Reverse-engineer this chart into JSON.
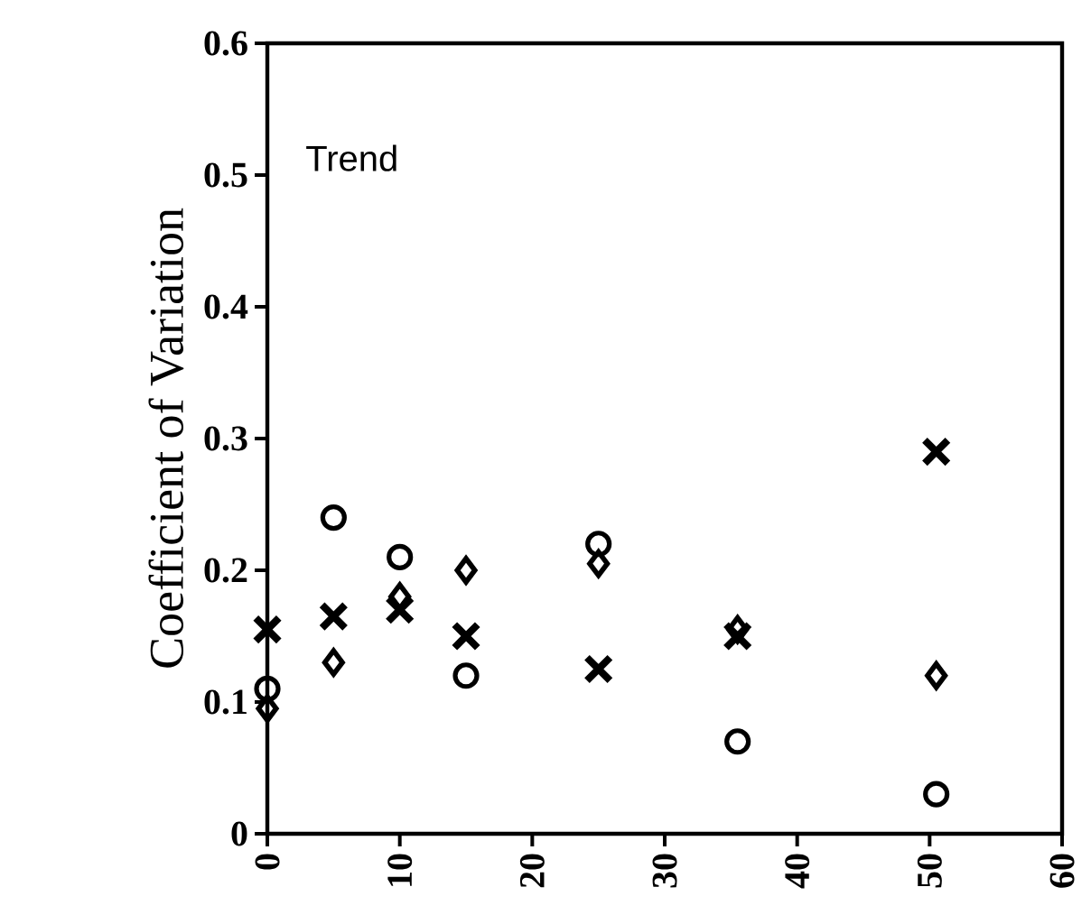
{
  "chart_data": {
    "type": "scatter",
    "ylabel": "Coefficient of Variation",
    "annotations": [
      "Trend"
    ],
    "xlim": [
      0,
      60
    ],
    "xticks": [
      0,
      10,
      20,
      30,
      40,
      50,
      60
    ],
    "ylim": [
      0,
      0.6
    ],
    "yticks": [
      0,
      0.1,
      0.2,
      0.3,
      0.4,
      0.5,
      0.6
    ],
    "series": [
      {
        "color": "#000000",
        "marker": "circle",
        "x": [
          0,
          5,
          10,
          15,
          25,
          35.5,
          50.5
        ],
        "values": [
          0.11,
          0.24,
          0.21,
          0.12,
          0.22,
          0.07,
          0.03
        ]
      },
      {
        "color": "#000000",
        "marker": "diamond",
        "x": [
          0,
          5,
          10,
          15,
          25,
          35.5,
          50.5
        ],
        "values": [
          0.095,
          0.13,
          0.18,
          0.2,
          0.205,
          0.155,
          0.12
        ]
      },
      {
        "color": "#000000",
        "marker": "cross",
        "x": [
          0,
          5,
          10,
          15,
          25,
          35.5,
          50.5
        ],
        "values": [
          0.155,
          0.165,
          0.17,
          0.15,
          0.125,
          0.15,
          0.29
        ]
      }
    ]
  }
}
